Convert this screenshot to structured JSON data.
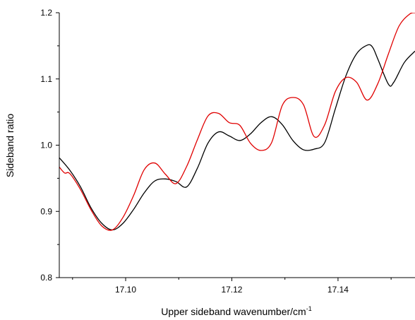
{
  "chart_data": {
    "type": "line",
    "title": "",
    "xlabel": "Upper sideband wavenumber/cm",
    "xlabel_superscript": "-1",
    "ylabel": "Sideband ratio",
    "xlim": [
      17.0875,
      17.1545
    ],
    "ylim": [
      0.8,
      1.2
    ],
    "xticks": [
      17.1,
      17.12,
      17.14
    ],
    "xtick_labels": [
      "17.10",
      "17.12",
      "17.14"
    ],
    "yticks": [
      0.8,
      0.9,
      1.0,
      1.1,
      1.2
    ],
    "ytick_labels": [
      "0.8",
      "0.9",
      "1.0",
      "1.1",
      "1.2"
    ],
    "grid": false,
    "legend": "none",
    "series": [
      {
        "color": "#000000",
        "x": [
          17.0875,
          17.0895,
          17.0915,
          17.0935,
          17.0955,
          17.0975,
          17.0995,
          17.1015,
          17.1035,
          17.1055,
          17.1075,
          17.1095,
          17.1115,
          17.1135,
          17.1155,
          17.1175,
          17.1195,
          17.1215,
          17.1235,
          17.1255,
          17.1275,
          17.1295,
          17.1315,
          17.1335,
          17.1355,
          17.1375,
          17.1395,
          17.1415,
          17.1435,
          17.1455,
          17.1465,
          17.1475,
          17.1495,
          17.1505,
          17.1525,
          17.1545
        ],
        "y": [
          0.981,
          0.962,
          0.937,
          0.905,
          0.882,
          0.872,
          0.882,
          0.903,
          0.928,
          0.946,
          0.949,
          0.945,
          0.937,
          0.965,
          1.003,
          1.02,
          1.014,
          1.007,
          1.017,
          1.034,
          1.043,
          1.031,
          1.007,
          0.993,
          0.994,
          1.004,
          1.055,
          1.105,
          1.138,
          1.151,
          1.148,
          1.13,
          1.092,
          1.095,
          1.125,
          1.142
        ]
      },
      {
        "color": "#e00000",
        "x": [
          17.0875,
          17.0885,
          17.0895,
          17.0915,
          17.0935,
          17.0955,
          17.0975,
          17.0995,
          17.1015,
          17.1035,
          17.1055,
          17.1075,
          17.1095,
          17.1115,
          17.1135,
          17.1155,
          17.1175,
          17.1195,
          17.1215,
          17.1235,
          17.1255,
          17.1275,
          17.1295,
          17.1315,
          17.1335,
          17.1355,
          17.1375,
          17.1395,
          17.1415,
          17.1435,
          17.1455,
          17.1475,
          17.1495,
          17.1515,
          17.1535,
          17.1545
        ],
        "y": [
          0.967,
          0.958,
          0.957,
          0.933,
          0.902,
          0.878,
          0.872,
          0.891,
          0.924,
          0.963,
          0.973,
          0.956,
          0.942,
          0.968,
          1.008,
          1.044,
          1.048,
          1.034,
          1.03,
          1.003,
          0.992,
          1.004,
          1.06,
          1.072,
          1.061,
          1.013,
          1.031,
          1.081,
          1.102,
          1.095,
          1.068,
          1.093,
          1.138,
          1.18,
          1.198,
          1.2
        ]
      }
    ]
  }
}
